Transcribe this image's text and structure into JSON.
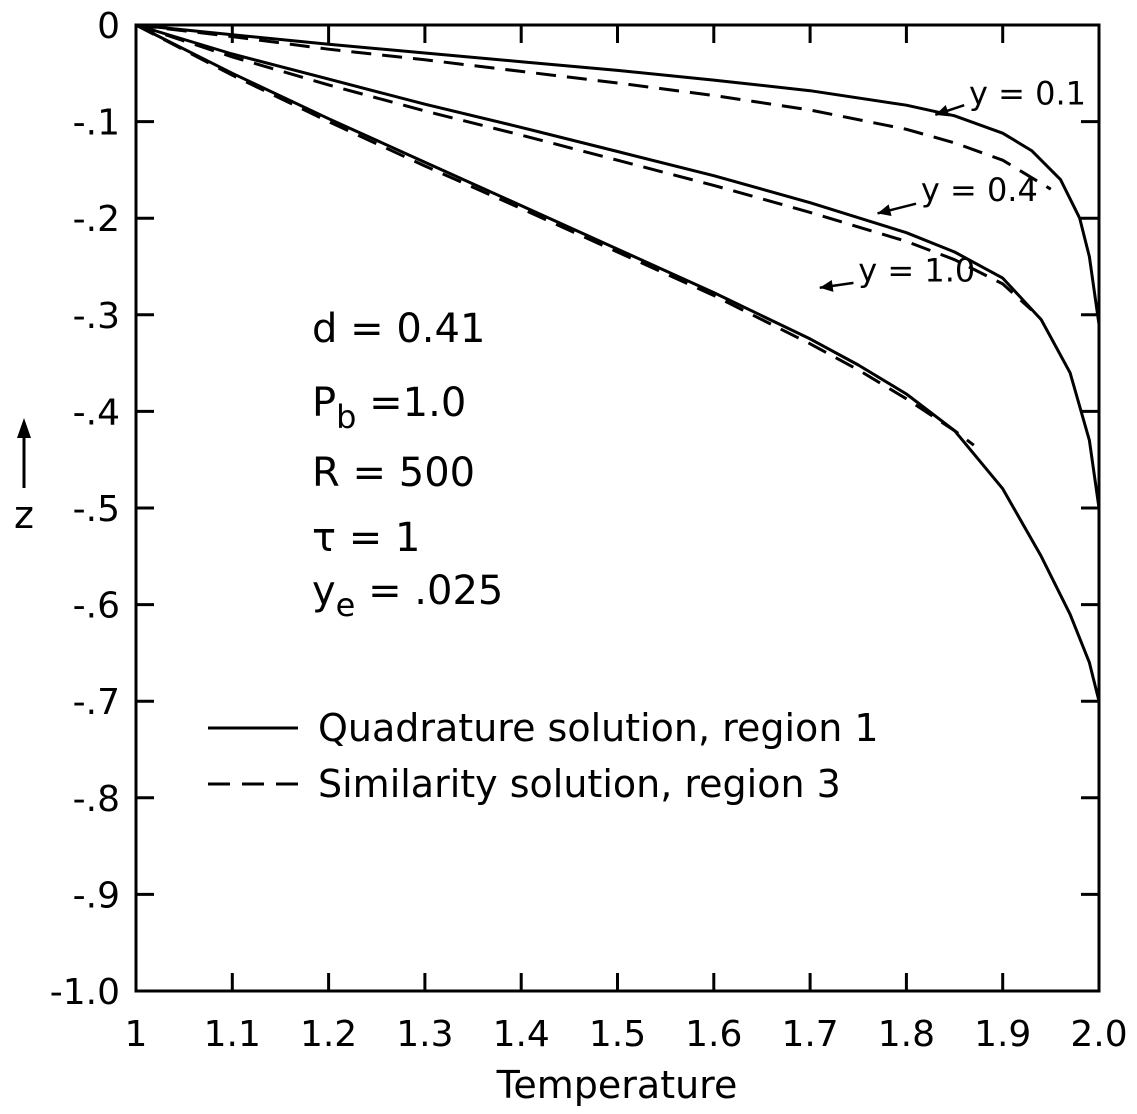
{
  "chart_data": {
    "type": "line",
    "xlabel": "Temperature",
    "ylabel": "z",
    "xlim": [
      1.0,
      2.0
    ],
    "ylim": [
      -1.0,
      0.0
    ],
    "x_ticks": [
      "1",
      "1.1",
      "1.2",
      "1.3",
      "1.4",
      "1.5",
      "1.6",
      "1.7",
      "1.8",
      "1.9",
      "2.0"
    ],
    "y_ticks": [
      "0",
      "-.1",
      "-.2",
      "-.3",
      "-.4",
      "-.5",
      "-.6",
      "-.7",
      "-.8",
      "-.9",
      "-1.0"
    ],
    "grid": false,
    "legend_position": "lower-left",
    "legend": [
      {
        "style": "solid",
        "label": "Quadrature solution, region 1"
      },
      {
        "style": "dashed",
        "label": "Similarity solution, region 3"
      }
    ],
    "parameters": [
      {
        "lhs": "d",
        "sub": "",
        "rhs": "= 0.41"
      },
      {
        "lhs": "P",
        "sub": "b",
        "rhs": "=1.0"
      },
      {
        "lhs": "R",
        "sub": "",
        "rhs": "= 500"
      },
      {
        "lhs": "τ",
        "sub": "",
        "rhs": "= 1"
      },
      {
        "lhs": "y",
        "sub": "e",
        "rhs": "= .025"
      }
    ],
    "series": [
      {
        "group": "y=0.1",
        "style": "solid",
        "label": "y = 0.1",
        "x": [
          1.0,
          1.1,
          1.2,
          1.3,
          1.4,
          1.5,
          1.6,
          1.7,
          1.8,
          1.85,
          1.9,
          1.93,
          1.96,
          1.98,
          1.99,
          2.0
        ],
        "y": [
          0.0,
          -0.01,
          -0.02,
          -0.029,
          -0.038,
          -0.047,
          -0.057,
          -0.068,
          -0.083,
          -0.094,
          -0.112,
          -0.13,
          -0.16,
          -0.2,
          -0.24,
          -0.31
        ]
      },
      {
        "group": "y=0.1",
        "style": "dashed",
        "label": "",
        "x": [
          1.0,
          1.1,
          1.2,
          1.3,
          1.4,
          1.5,
          1.6,
          1.7,
          1.8,
          1.85,
          1.9,
          1.95
        ],
        "y": [
          0.0,
          -0.012,
          -0.025,
          -0.036,
          -0.048,
          -0.06,
          -0.073,
          -0.088,
          -0.108,
          -0.122,
          -0.14,
          -0.17
        ]
      },
      {
        "group": "y=0.4",
        "style": "solid",
        "label": "y = 0.4",
        "x": [
          1.0,
          1.1,
          1.2,
          1.3,
          1.4,
          1.5,
          1.6,
          1.7,
          1.8,
          1.85,
          1.9,
          1.94,
          1.97,
          1.99,
          2.0
        ],
        "y": [
          0.0,
          -0.03,
          -0.056,
          -0.082,
          -0.106,
          -0.131,
          -0.156,
          -0.184,
          -0.215,
          -0.235,
          -0.262,
          -0.305,
          -0.36,
          -0.43,
          -0.5
        ]
      },
      {
        "group": "y=0.4",
        "style": "dashed",
        "label": "",
        "x": [
          1.0,
          1.1,
          1.2,
          1.3,
          1.4,
          1.5,
          1.6,
          1.7,
          1.8,
          1.85,
          1.9,
          1.93
        ],
        "y": [
          0.0,
          -0.033,
          -0.062,
          -0.089,
          -0.114,
          -0.14,
          -0.166,
          -0.194,
          -0.224,
          -0.243,
          -0.268,
          -0.295
        ]
      },
      {
        "group": "y=1.0",
        "style": "solid",
        "label": "y = 1.0",
        "x": [
          1.0,
          1.1,
          1.2,
          1.3,
          1.4,
          1.5,
          1.6,
          1.7,
          1.75,
          1.8,
          1.85,
          1.9,
          1.94,
          1.97,
          1.99,
          2.0
        ],
        "y": [
          0.0,
          -0.05,
          -0.097,
          -0.142,
          -0.187,
          -0.232,
          -0.277,
          -0.325,
          -0.352,
          -0.382,
          -0.42,
          -0.48,
          -0.55,
          -0.61,
          -0.66,
          -0.7
        ]
      },
      {
        "group": "y=1.0",
        "style": "dashed",
        "label": "",
        "x": [
          1.0,
          1.1,
          1.2,
          1.3,
          1.4,
          1.5,
          1.6,
          1.7,
          1.75,
          1.8,
          1.85,
          1.87
        ],
        "y": [
          0.0,
          -0.052,
          -0.1,
          -0.146,
          -0.19,
          -0.235,
          -0.28,
          -0.33,
          -0.357,
          -0.387,
          -0.42,
          -0.435
        ]
      }
    ]
  }
}
